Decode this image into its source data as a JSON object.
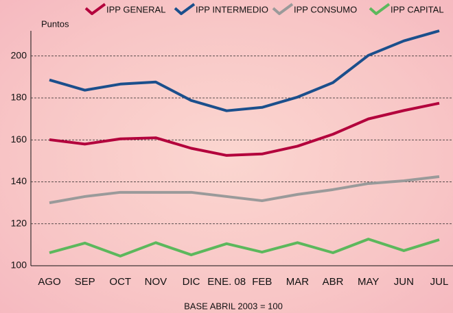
{
  "chart_data": {
    "type": "line",
    "y_label": "Puntos",
    "x_label": "BASE ABRIL 2003 = 100",
    "categories": [
      "AGO",
      "SEP",
      "OCT",
      "NOV",
      "DIC",
      "ENE. 08",
      "FEB",
      "MAR",
      "ABR",
      "MAY",
      "JUN",
      "JUL"
    ],
    "series": [
      {
        "name": "IPP GENERAL",
        "color": "#b3003c",
        "values": [
          160.1,
          158,
          160.5,
          161,
          156,
          152.6,
          153.3,
          157,
          162.7,
          170,
          174,
          177.5
        ]
      },
      {
        "name": "IPP INTERMEDIO",
        "color": "#1b4f8c",
        "values": [
          188.6,
          183.7,
          186.6,
          187.6,
          178.8,
          173.9,
          175.5,
          180.4,
          187.3,
          200.3,
          207.2,
          212
        ]
      },
      {
        "name": "IPP CONSUMO",
        "color": "#9a9a9a",
        "values": [
          130,
          133,
          135,
          135,
          135,
          133,
          131,
          134,
          136.3,
          139.2,
          140.5,
          142.5
        ]
      },
      {
        "name": "IPP CAPITAL",
        "color": "#5cb85c",
        "values": [
          106.2,
          110.8,
          104.6,
          111,
          105.2,
          110.5,
          106.5,
          111,
          106.2,
          112.7,
          107.2,
          112.4
        ]
      }
    ],
    "ylim": [
      100,
      212
    ],
    "yticks": [
      100,
      120,
      140,
      160,
      180,
      200
    ],
    "grid": true,
    "legend": "top"
  }
}
